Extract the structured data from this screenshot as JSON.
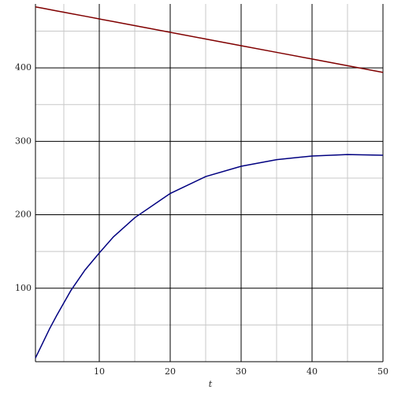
{
  "chart_data": {
    "type": "line",
    "x_label": "t",
    "x": [
      1,
      2,
      3,
      4,
      5,
      6,
      8,
      10,
      12,
      15,
      20,
      25,
      30,
      35,
      40,
      45,
      50
    ],
    "series": [
      {
        "color": "#800000",
        "values": [
          483,
          481.2,
          479.4,
          477.5,
          475.7,
          473.9,
          470.3,
          466.6,
          463,
          457.5,
          448.4,
          439.3,
          430.2,
          421.1,
          412,
          402.9,
          393.8
        ]
      },
      {
        "color": "#000080",
        "values": [
          5,
          25,
          45,
          63,
          80,
          97,
          125,
          148,
          170,
          196,
          229,
          252,
          266,
          275,
          280,
          282,
          281
        ]
      }
    ],
    "xlim": [
      1,
      50
    ],
    "ylim": [
      0,
      487
    ],
    "xticks": [
      10,
      20,
      30,
      40,
      50
    ],
    "yticks": [
      100,
      200,
      300,
      400
    ],
    "x_minor_grid": [
      5,
      15,
      25,
      35,
      45
    ],
    "y_minor_grid": [
      50,
      150,
      250,
      350,
      450
    ],
    "grid": true
  }
}
